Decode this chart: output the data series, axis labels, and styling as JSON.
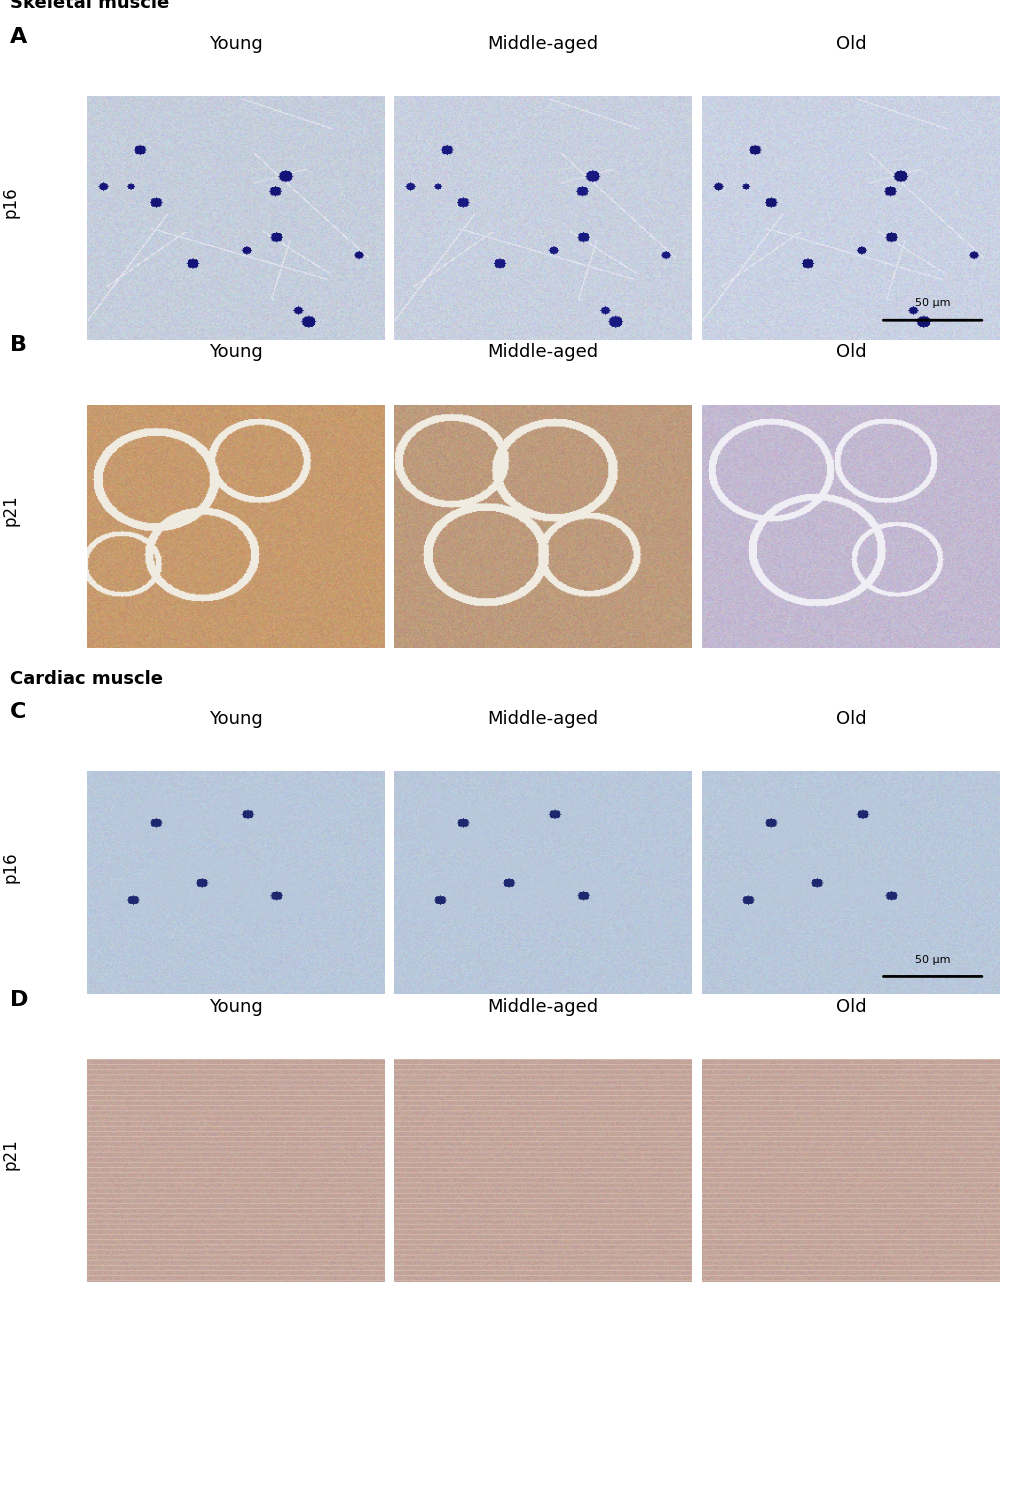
{
  "title_skeletal": "Skeletal muscle",
  "title_cardiac": "Cardiac muscle",
  "panel_labels": [
    "A",
    "B",
    "C",
    "D"
  ],
  "row_labels_skeletal": [
    "p16",
    "p21"
  ],
  "row_labels_cardiac": [
    "p16",
    "p21"
  ],
  "col_labels": [
    "Young",
    "Middle-aged",
    "Old"
  ],
  "scale_bar_text": "50 μm",
  "background_color": "#ffffff",
  "panel_label_fontsize": 16,
  "col_label_fontsize": 13,
  "row_label_fontsize": 12,
  "section_title_fontsize": 13,
  "scale_bar_fontsize": 9,
  "ihc_colors": {
    "A_Young": "#c8d0e0",
    "A_Middle": "#c8d0e0",
    "A_Old": "#c8d0e0",
    "B_Young": "#c8a070",
    "B_Middle": "#c8a070",
    "B_Old": "#c0b8d0",
    "C_Young": "#b8c8d8",
    "C_Middle": "#b8c8d8",
    "C_Old": "#c8d4e8",
    "D_Young": "#c8b0a8",
    "D_Middle": "#c8b0a8",
    "D_Old": "#c8b8c0"
  }
}
